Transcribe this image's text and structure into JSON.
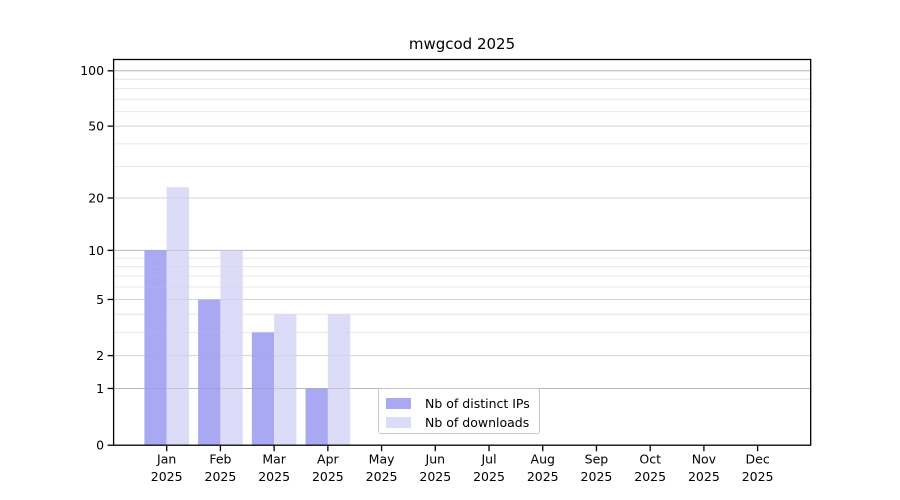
{
  "chart_data": {
    "type": "bar",
    "title": "mwgcod 2025",
    "year": "2025",
    "months": [
      "Jan",
      "Feb",
      "Mar",
      "Apr",
      "May",
      "Jun",
      "Jul",
      "Aug",
      "Sep",
      "Oct",
      "Nov",
      "Dec"
    ],
    "categories": [
      "Jan 2025",
      "Feb 2025",
      "Mar 2025",
      "Apr 2025",
      "May 2025",
      "Jun 2025",
      "Jul 2025",
      "Aug 2025",
      "Sep 2025",
      "Oct 2025",
      "Nov 2025",
      "Dec 2025"
    ],
    "series": [
      {
        "name": "Nb of distinct IPs",
        "color": "#a9a9f3",
        "values": [
          10,
          5,
          3,
          1,
          0,
          0,
          0,
          0,
          0,
          0,
          0,
          0
        ]
      },
      {
        "name": "Nb of downloads",
        "color": "#dcdcf8",
        "values": [
          23,
          10,
          4,
          4,
          0,
          0,
          0,
          0,
          0,
          0,
          0,
          0
        ]
      }
    ],
    "xlabel": "",
    "ylabel": "",
    "ylim": [
      0,
      100
    ],
    "yscale": "log10(1+y)",
    "ytick_values": [
      0,
      1,
      2,
      5,
      10,
      20,
      50,
      100
    ],
    "ytick_labels": [
      "0",
      "1",
      "2",
      "5",
      "10",
      "20",
      "50",
      "100"
    ],
    "minor_gridline_values": [
      3,
      4,
      6,
      7,
      8,
      9,
      30,
      40,
      60,
      70,
      80,
      90
    ],
    "grid": "on",
    "legend_position": "lower center-right",
    "colors": {
      "axis": "#000000",
      "major_gridline": "#c9c9c9",
      "mid_gridline": "#e2e2e2",
      "minor_gridline": "#eeeeee",
      "text": "#000000",
      "legend_border": "#c8c8c8",
      "background": "#ffffff"
    }
  }
}
